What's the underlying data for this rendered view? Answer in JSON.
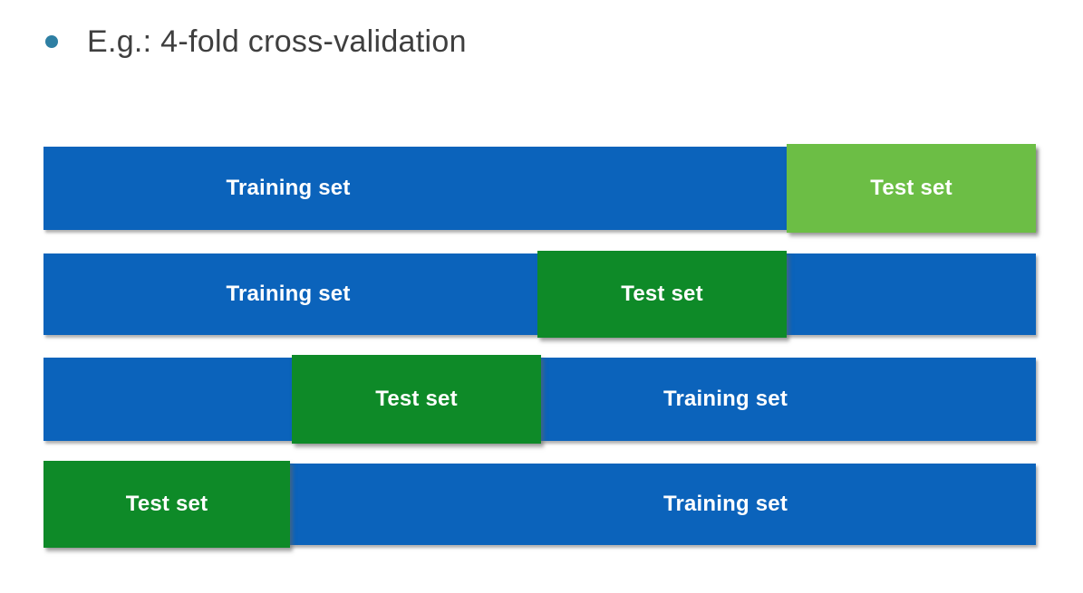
{
  "title": {
    "text": "E.g.: 4-fold cross-validation"
  },
  "colors": {
    "training_blue": "#0b63bb",
    "test_green_light": "#6cbe45",
    "test_green_dark": "#0e8a28",
    "title_text": "#3f3f3f",
    "bullet": "#2e7fa3",
    "bar_label_text": "#ffffff",
    "background": "#ffffff"
  },
  "diagram": {
    "description": "4-fold cross-validation: four rows, each a full data bar with the test fold highlighted",
    "folds": 4,
    "rows": [
      {
        "training_label": "Training set",
        "test_label": "Test set",
        "test_fold_position": "fourth-quarter-right",
        "test_color": "light-green",
        "training_label_side": "left"
      },
      {
        "training_label": "Training set",
        "test_label": "Test set",
        "test_fold_position": "third-quarter",
        "test_color": "dark-green",
        "training_label_side": "left"
      },
      {
        "training_label": "Training set",
        "test_label": "Test set",
        "test_fold_position": "second-quarter",
        "test_color": "dark-green",
        "training_label_side": "right"
      },
      {
        "training_label": "Training set",
        "test_label": "Test set",
        "test_fold_position": "first-quarter-left",
        "test_color": "dark-green",
        "training_label_side": "right"
      }
    ]
  }
}
